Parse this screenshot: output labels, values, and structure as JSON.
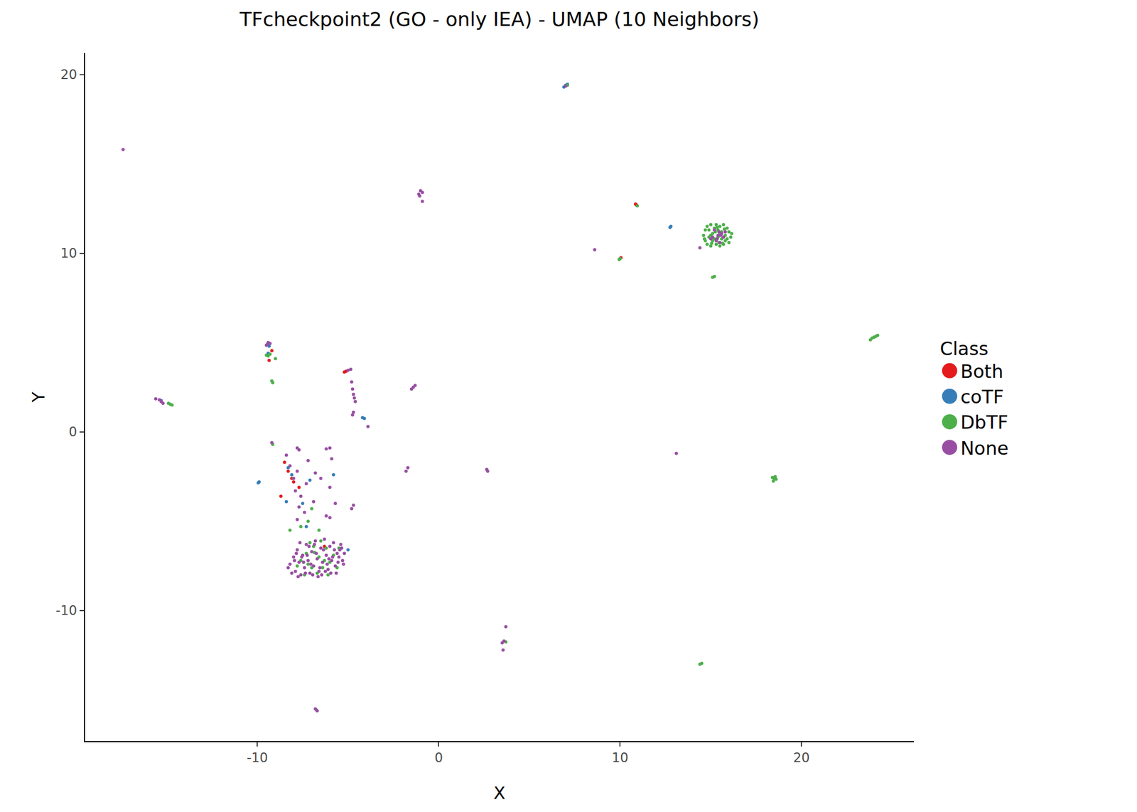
{
  "chart_data": {
    "type": "scatter",
    "title": "TFcheckpoint2 (GO - only IEA) - UMAP (10 Neighbors)",
    "x_label": "X",
    "y_label": "Y",
    "legend_title": "Class",
    "legend": "right",
    "grid": false,
    "marker": "circle",
    "xlim": [
      -19.5,
      26.2
    ],
    "ylim": [
      -17.3,
      21.2
    ],
    "xticks": [
      -10,
      0,
      10,
      20
    ],
    "yticks": [
      -10,
      0,
      10,
      20
    ],
    "series": [
      {
        "name": "Both",
        "color": "#E41A1C",
        "x": [
          10.9,
          10.85,
          10.05,
          -9.2,
          -9.35,
          -5.2,
          -5.1,
          -8.5,
          -8.1,
          -8.0,
          -7.7,
          -8.7,
          -8.3,
          -6.3
        ],
        "y": [
          12.7,
          12.75,
          9.75,
          4.55,
          4.0,
          3.35,
          3.4,
          -1.7,
          -2.6,
          -2.8,
          -3.1,
          -3.6,
          -2.2,
          -6.4
        ]
      },
      {
        "name": "coTF",
        "color": "#377EB8",
        "x": [
          6.9,
          7.0,
          7.1,
          12.8,
          12.75,
          -9.45,
          -9.35,
          -4.2,
          -4.1,
          -9.9,
          -9.95,
          -8.3,
          -8.1,
          -7.1,
          -5.8,
          -7.5,
          -7.3,
          -8.4,
          -15.3,
          -9.4,
          -5.0
        ],
        "y": [
          19.3,
          19.4,
          19.45,
          11.5,
          11.45,
          4.9,
          4.8,
          0.8,
          0.75,
          -2.8,
          -2.85,
          -2.0,
          -2.4,
          -2.7,
          -2.4,
          -4.0,
          -5.3,
          -3.9,
          1.75,
          4.4,
          -6.6
        ]
      },
      {
        "name": "DbTF",
        "color": "#4DAF4A",
        "x": [
          -7.6,
          -7.3,
          -7.0,
          -6.9,
          -6.6,
          -6.4,
          -6.2,
          -6.0,
          -5.8,
          -7.4,
          -6.7,
          -6.5,
          -5.6,
          -7.8,
          -7.1,
          -6.3,
          -6.85,
          -7.2,
          -5.5,
          -6.1,
          -7.6,
          -7.2,
          -8.2,
          -7.0,
          -6.6,
          14.6,
          14.7,
          14.7,
          14.8,
          14.8,
          14.9,
          15.0,
          15.0,
          15.1,
          15.1,
          15.2,
          15.3,
          15.3,
          15.4,
          15.4,
          15.5,
          15.5,
          15.6,
          15.6,
          15.7,
          15.7,
          15.8,
          15.8,
          15.9,
          16.0,
          16.0,
          16.1,
          14.9,
          15.2,
          15.5,
          15.9,
          15.0,
          15.35,
          15.65,
          14.65,
          16.15,
          15.45,
          15.25,
          15.75,
          15.05,
          15.2,
          15.1,
          7.1,
          10.0,
          9.95,
          10.95,
          23.8,
          23.9,
          24.0,
          24.1,
          24.2,
          -9.5,
          -9.4,
          -9.3,
          -9.0,
          -9.2,
          -9.15,
          -14.9,
          -14.8,
          -14.7,
          -9.15,
          18.4,
          18.5,
          18.6,
          18.45,
          18.55,
          14.4,
          14.5,
          -6.75,
          3.7
        ],
        "y": [
          -7.2,
          -6.8,
          -7.6,
          -6.4,
          -7.0,
          -7.6,
          -6.5,
          -7.3,
          -6.9,
          -8.0,
          -7.9,
          -6.1,
          -7.6,
          -7.5,
          -6.2,
          -7.2,
          -6.75,
          -7.4,
          -6.5,
          -8.0,
          -5.3,
          -5.0,
          -5.5,
          -4.3,
          -5.5,
          11.0,
          10.7,
          11.3,
          10.5,
          11.5,
          10.9,
          10.4,
          11.6,
          11.1,
          10.7,
          11.4,
          10.5,
          11.6,
          10.9,
          11.3,
          10.4,
          11.5,
          10.8,
          11.2,
          10.5,
          11.6,
          11.0,
          10.7,
          11.4,
          10.6,
          11.2,
          10.9,
          11.3,
          10.8,
          11.1,
          10.8,
          11.0,
          11.45,
          10.55,
          10.8,
          11.1,
          10.6,
          11.2,
          11.35,
          10.55,
          8.7,
          8.65,
          19.4,
          9.7,
          9.65,
          12.65,
          5.15,
          5.25,
          5.3,
          5.35,
          5.4,
          4.3,
          4.25,
          4.35,
          4.1,
          2.85,
          2.75,
          1.6,
          1.55,
          1.5,
          -0.7,
          -2.55,
          -2.6,
          -2.65,
          -2.75,
          -2.5,
          -13.0,
          -12.95,
          -15.55,
          -11.75
        ]
      },
      {
        "name": "None",
        "color": "#984EA3",
        "x": [
          -8.2,
          -8.0,
          -7.9,
          -7.8,
          -7.7,
          -7.6,
          -7.5,
          -7.4,
          -7.3,
          -7.2,
          -7.1,
          -7.0,
          -6.9,
          -6.8,
          -6.7,
          -6.6,
          -6.5,
          -6.4,
          -6.3,
          -6.2,
          -6.1,
          -6.0,
          -5.9,
          -5.8,
          -5.7,
          -5.6,
          -5.5,
          -5.4,
          -5.3,
          -5.2,
          -8.1,
          -7.95,
          -7.75,
          -7.55,
          -7.35,
          -7.15,
          -6.95,
          -6.75,
          -6.55,
          -6.35,
          -6.15,
          -5.95,
          -5.75,
          -5.55,
          -5.35,
          -8.3,
          -7.65,
          -7.05,
          -6.45,
          -5.85,
          -7.85,
          -7.25,
          -6.65,
          -6.05,
          -5.45,
          -7.45,
          -6.85,
          -6.25,
          -5.65,
          -5.25,
          15.1,
          15.4,
          15.6,
          15.3,
          15.8,
          15.0,
          15.5,
          15.2,
          15.7,
          15.45,
          15.35,
          15.55,
          -17.4,
          -1.0,
          -1.1,
          -0.9,
          -1.05,
          -0.9,
          8.6,
          14.4,
          -9.4,
          -9.3,
          -9.5,
          -15.6,
          -15.4,
          -15.3,
          -15.2,
          -5.0,
          -4.85,
          -4.8,
          -4.75,
          -4.7,
          -4.65,
          -4.6,
          -4.7,
          -4.75,
          -3.9,
          -1.4,
          -1.3,
          -1.5,
          -1.7,
          -1.8,
          2.7,
          2.65,
          13.1,
          -9.2,
          -7.8,
          -7.7,
          -6.0,
          -6.2,
          -5.9,
          -7.2,
          -8.2,
          -7.8,
          -6.8,
          -6.5,
          -8.0,
          -7.3,
          -7.9,
          -6.0,
          -5.7,
          -4.7,
          -4.8,
          -7.7,
          -7.4,
          -7.8,
          -6.2,
          -6.0,
          -6.9,
          3.6,
          3.5,
          3.7,
          3.55,
          -6.8,
          -6.7,
          7.0,
          -8.4,
          -7.6
        ],
        "y": [
          -7.4,
          -7.0,
          -7.8,
          -6.6,
          -7.3,
          -8.0,
          -6.9,
          -7.6,
          -6.3,
          -7.2,
          -7.9,
          -6.7,
          -7.5,
          -6.1,
          -7.1,
          -7.8,
          -6.5,
          -7.3,
          -6.0,
          -6.9,
          -7.7,
          -6.4,
          -7.2,
          -6.2,
          -7.5,
          -6.8,
          -7.0,
          -6.3,
          -7.2,
          -6.8,
          -7.9,
          -7.2,
          -8.1,
          -7.0,
          -7.9,
          -6.4,
          -8.0,
          -6.8,
          -7.6,
          -6.6,
          -7.4,
          -7.9,
          -6.6,
          -7.3,
          -6.5,
          -7.6,
          -6.2,
          -7.4,
          -8.0,
          -7.0,
          -6.8,
          -6.9,
          -8.1,
          -7.1,
          -6.6,
          -7.3,
          -6.3,
          -7.8,
          -7.9,
          -7.4,
          10.9,
          11.0,
          11.1,
          10.7,
          11.2,
          10.8,
          10.6,
          11.3,
          10.9,
          11.2,
          10.8,
          11.0,
          15.8,
          13.5,
          13.3,
          13.4,
          13.2,
          12.9,
          10.2,
          10.3,
          5.0,
          4.95,
          4.85,
          1.85,
          1.8,
          1.7,
          1.6,
          3.45,
          3.5,
          2.8,
          2.4,
          2.1,
          1.9,
          1.7,
          1.1,
          0.95,
          0.3,
          2.5,
          2.6,
          2.4,
          -2.0,
          -2.2,
          -2.2,
          -2.1,
          -1.2,
          -0.6,
          -0.9,
          -1.0,
          -0.9,
          -0.95,
          -1.5,
          -1.6,
          -1.9,
          -2.2,
          -2.3,
          -2.6,
          -2.6,
          -2.9,
          -3.3,
          -3.1,
          -4.0,
          -4.1,
          -4.3,
          -4.2,
          -4.5,
          -4.9,
          -4.7,
          -4.8,
          -3.9,
          -11.7,
          -11.8,
          -10.9,
          -12.2,
          -15.5,
          -15.6,
          19.35,
          -1.3,
          -3.6
        ]
      }
    ]
  }
}
